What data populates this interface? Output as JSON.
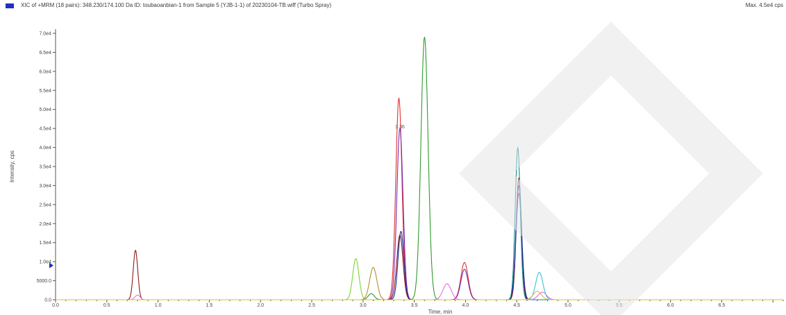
{
  "header": {
    "title": "XIC of +MRM (18 pairs): 348.230/174.100 Da ID: toubaoanbian-1 from Sample 5 (YJB-1-1) of 20230104-TB.wiff (Turbo Spray)",
    "max": "Max. 4.5e4 cps"
  },
  "colors": {
    "header_swatch": "#1f2fbf"
  },
  "chart_data": {
    "type": "line",
    "title": "XIC of +MRM (18 pairs): 348.230/174.100 Da ID: toubaoanbian-1 from Sample 5 (YJB-1-1) of 20230104-TB.wiff (Turbo Spray)",
    "xlabel": "Time, min",
    "ylabel": "Intensity, cps",
    "xlim": [
      0.0,
      7.1
    ],
    "ylim": [
      0,
      70000
    ],
    "x_ticks": [
      "0.0",
      "0.5",
      "1.0",
      "1.5",
      "2.0",
      "2.5",
      "3.0",
      "3.5",
      "4.0",
      "4.5",
      "5.0",
      "5.5",
      "6.0",
      "6.5"
    ],
    "y_ticks": [
      "0.0",
      "5000.0",
      "1.0e4",
      "1.5e4",
      "2.0e4",
      "2.5e4",
      "3.0e4",
      "3.5e4",
      "4.0e4",
      "4.5e4",
      "5.0e4",
      "5.5e4",
      "6.0e4",
      "6.5e4",
      "7.0e4"
    ],
    "grid": false,
    "annotations": [
      {
        "text": "3.36",
        "x": 3.36,
        "y": 45000
      }
    ],
    "series": [
      {
        "color": "#8b1a1a",
        "peaks": [
          [
            0.78,
            13000,
            0.022
          ],
          [
            3.36,
            17000,
            0.03
          ],
          [
            4.52,
            32000,
            0.025
          ]
        ]
      },
      {
        "color": "#e03030",
        "peaks": [
          [
            3.35,
            53000,
            0.03
          ],
          [
            3.99,
            9800,
            0.035
          ]
        ]
      },
      {
        "color": "#2e9a2e",
        "peaks": [
          [
            3.6,
            69000,
            0.035
          ],
          [
            3.08,
            1600,
            0.03
          ]
        ]
      },
      {
        "color": "#7ad62a",
        "peaks": [
          [
            2.93,
            10800,
            0.03
          ]
        ]
      },
      {
        "color": "#b09030",
        "peaks": [
          [
            3.1,
            8500,
            0.035
          ]
        ]
      },
      {
        "color": "#7a2ab0",
        "peaks": [
          [
            3.36,
            45000,
            0.03
          ],
          [
            3.99,
            8000,
            0.035
          ],
          [
            4.52,
            28000,
            0.028
          ]
        ]
      },
      {
        "color": "#1a2a9a",
        "peaks": [
          [
            3.37,
            18000,
            0.028
          ],
          [
            4.52,
            30000,
            0.028
          ]
        ]
      },
      {
        "color": "#0a8a8a",
        "peaks": [
          [
            4.51,
            40000,
            0.025
          ]
        ]
      },
      {
        "color": "#30c8e0",
        "peaks": [
          [
            4.72,
            7200,
            0.035
          ]
        ]
      },
      {
        "color": "#e070e0",
        "peaks": [
          [
            3.82,
            4200,
            0.04
          ],
          [
            4.75,
            2000,
            0.04
          ],
          [
            0.8,
            1200,
            0.025
          ]
        ]
      },
      {
        "color": "#e0c020",
        "peaks": [
          [
            4.7,
            2200,
            0.04
          ]
        ]
      }
    ]
  }
}
